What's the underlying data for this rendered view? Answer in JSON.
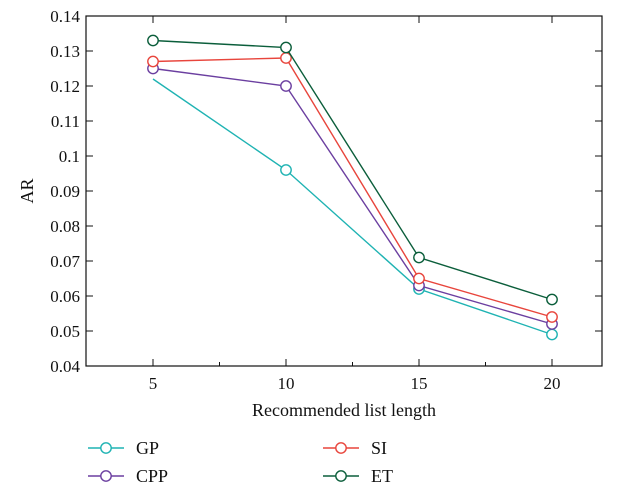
{
  "chart_data": {
    "type": "line",
    "title": "",
    "xlabel": "Recommended list length",
    "ylabel": "AR",
    "categories": [
      "5",
      "10",
      "15",
      "20"
    ],
    "x": [
      5,
      10,
      15,
      20
    ],
    "ylim": [
      0.04,
      0.14
    ],
    "yticks": [
      "0.04",
      "0.05",
      "0.06",
      "0.07",
      "0.08",
      "0.09",
      "0.1",
      "0.11",
      "0.12",
      "0.13",
      "0.14"
    ],
    "grid": false,
    "legend_position": "bottom",
    "series": [
      {
        "name": "GP",
        "color": "#1fb3b3",
        "values": [
          0.122,
          0.096,
          0.062,
          0.049
        ],
        "markers": [
          false,
          true,
          true,
          true
        ]
      },
      {
        "name": "CPP",
        "color": "#6b3fa0",
        "values": [
          0.125,
          0.12,
          0.063,
          0.052
        ],
        "markers": [
          true,
          true,
          true,
          true
        ]
      },
      {
        "name": "SI",
        "color": "#e8453c",
        "values": [
          0.127,
          0.128,
          0.065,
          0.054
        ],
        "markers": [
          true,
          true,
          true,
          true
        ]
      },
      {
        "name": "ET",
        "color": "#0b5e3b",
        "values": [
          0.133,
          0.131,
          0.071,
          0.059
        ],
        "markers": [
          true,
          true,
          true,
          true
        ]
      }
    ]
  }
}
